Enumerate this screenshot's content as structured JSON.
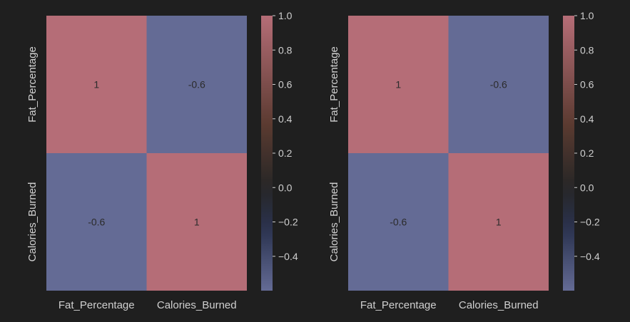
{
  "chart_data": [
    {
      "type": "heatmap",
      "title": "",
      "xlabel": "",
      "ylabel": "",
      "x_categories": [
        "Fat_Percentage",
        "Calories_Burned"
      ],
      "y_categories": [
        "Fat_Percentage",
        "Calories_Burned"
      ],
      "values": [
        [
          1,
          -0.6
        ],
        [
          -0.6,
          1
        ]
      ],
      "annotations": [
        [
          "1",
          "-0.6"
        ],
        [
          "-0.6",
          "1"
        ]
      ],
      "colorbar": {
        "range": [
          -0.6,
          1.0
        ],
        "ticks": [
          1.0,
          0.8,
          0.6,
          0.4,
          0.2,
          0.0,
          -0.2,
          -0.4
        ],
        "tick_labels": [
          "1.0",
          "0.8",
          "0.6",
          "0.4",
          "0.2",
          "0.0",
          "−0.2",
          "−0.4"
        ]
      }
    },
    {
      "type": "heatmap",
      "title": "",
      "xlabel": "",
      "ylabel": "",
      "x_categories": [
        "Fat_Percentage",
        "Calories_Burned"
      ],
      "y_categories": [
        "Fat_Percentage",
        "Calories_Burned"
      ],
      "values": [
        [
          1,
          -0.6
        ],
        [
          -0.6,
          1
        ]
      ],
      "annotations": [
        [
          "1",
          "-0.6"
        ],
        [
          "-0.6",
          "1"
        ]
      ],
      "colorbar": {
        "range": [
          -0.6,
          1.0
        ],
        "ticks": [
          1.0,
          0.8,
          0.6,
          0.4,
          0.2,
          0.0,
          -0.2,
          -0.4
        ],
        "tick_labels": [
          "1.0",
          "0.8",
          "0.6",
          "0.4",
          "0.2",
          "0.0",
          "−0.2",
          "−0.4"
        ]
      }
    }
  ],
  "colors": {
    "background": "#1f1f1f",
    "positive": "#b56d77",
    "neutral": "#262626",
    "negative": "#646b95",
    "mid_warm": "#5a3a30",
    "mid_cool": "#2b3350",
    "text_dark": "#2b2b2b",
    "text_light": "#d0d0d0"
  }
}
